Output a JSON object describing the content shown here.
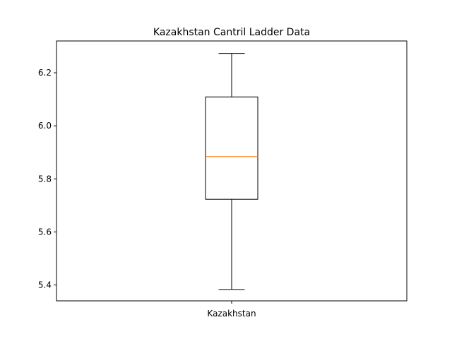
{
  "chart_data": {
    "type": "box",
    "title": "Kazakhstan Cantril Ladder Data",
    "xlabel": "",
    "ylabel": "",
    "categories": [
      "Kazakhstan"
    ],
    "series": [
      {
        "category": "Kazakhstan",
        "whisker_low": 5.383,
        "q1": 5.723,
        "median": 5.884,
        "q3": 6.109,
        "whisker_high": 6.273
      }
    ],
    "ylim": [
      5.34,
      6.32
    ],
    "yticks": [
      "5.4",
      "5.6",
      "5.8",
      "6.0",
      "6.2"
    ],
    "grid": false,
    "legend": "none",
    "colors": {
      "box": "#000000",
      "median": "#ff7f0e",
      "axes": "#000000",
      "background": "#ffffff"
    }
  }
}
